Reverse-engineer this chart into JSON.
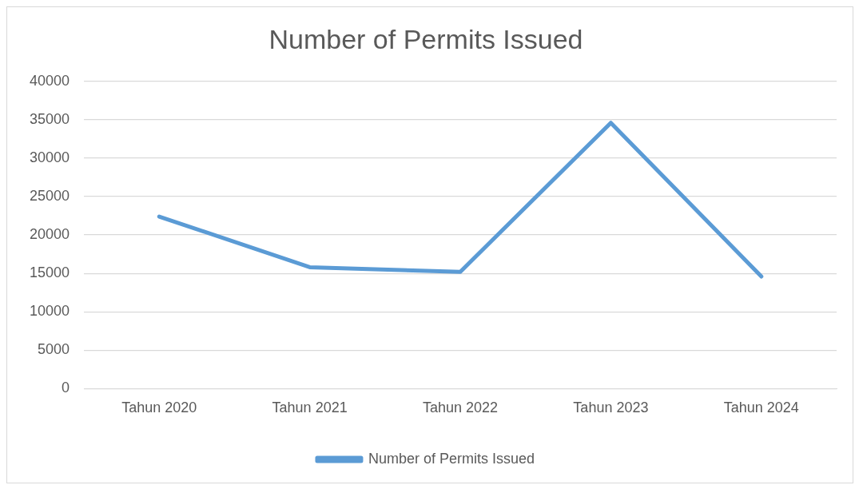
{
  "chart_data": {
    "type": "line",
    "title": "Number of Permits Issued",
    "categories": [
      "Tahun 2020",
      "Tahun 2021",
      "Tahun 2022",
      "Tahun 2023",
      "Tahun 2024"
    ],
    "series": [
      {
        "name": "Number of Permits Issued",
        "color": "#5b9bd5",
        "values": [
          22400,
          15800,
          15200,
          34600,
          14600
        ]
      }
    ],
    "ylim": [
      0,
      40000
    ],
    "yticks": [
      0,
      5000,
      10000,
      15000,
      20000,
      25000,
      30000,
      35000,
      40000
    ],
    "grid": "y",
    "legend": "bottom",
    "marker": "none"
  }
}
